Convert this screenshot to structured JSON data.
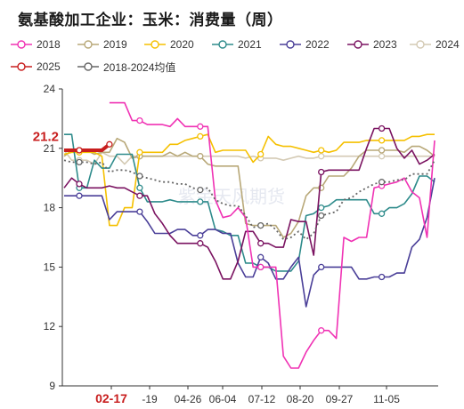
{
  "title": "氨基酸加工企业：玉米：消费量（周）",
  "chart_data": {
    "type": "line",
    "title": "氨基酸加工企业：玉米：消费量（周）",
    "ylim": [
      9,
      24
    ],
    "yticks": [
      "24",
      "21",
      "18",
      "15",
      "12",
      "9"
    ],
    "x_ticks": [
      "02-17",
      "-19",
      "04-26",
      "06-04",
      "07-12",
      "08-20",
      "09-27",
      "11-05"
    ],
    "highlight_x": "02-17",
    "highlight_value": "21.2",
    "grid": false,
    "legend_position": "top",
    "n_points": 50,
    "series": [
      {
        "name": "2018",
        "color": "#f032b4",
        "marker": "circle",
        "values": [
          null,
          null,
          null,
          null,
          null,
          null,
          23.3,
          23.3,
          23.3,
          22.4,
          22.4,
          22.2,
          22.2,
          22.2,
          22.1,
          22.5,
          22.1,
          22.1,
          22.1,
          22.1,
          18.4,
          17.5,
          17.6,
          18.0,
          17.5,
          15.0,
          15.0,
          15.0,
          15.0,
          10.5,
          9.9,
          9.9,
          10.7,
          11.3,
          11.8,
          11.8,
          11.4,
          16.5,
          16.3,
          16.5,
          16.5,
          19.0,
          19.1,
          19.2,
          19.3,
          19.5,
          18.8,
          18.5,
          16.5,
          21.4
        ]
      },
      {
        "name": "2019",
        "color": "#b8a878",
        "marker": "circle",
        "values": [
          20.6,
          20.9,
          20.9,
          20.9,
          20.7,
          20.8,
          20.8,
          21.5,
          21.3,
          20.5,
          20.6,
          20.6,
          20.6,
          20.6,
          20.8,
          20.6,
          20.8,
          20.6,
          20.6,
          20.2,
          20.1,
          20.1,
          20.1,
          20.1,
          17.2,
          17.1,
          17.1,
          17.1,
          17.1,
          16.5,
          16.7,
          17.3,
          18.6,
          19.0,
          19.0,
          19.6,
          19.6,
          19.6,
          20.0,
          20.6,
          20.9,
          20.9,
          20.9,
          20.9,
          20.9,
          20.8,
          21.1,
          21.1,
          20.9,
          20.6
        ]
      },
      {
        "name": "2020",
        "color": "#f5c000",
        "marker": "circle",
        "values": [
          20.7,
          20.8,
          20.8,
          20.8,
          20.8,
          20.6,
          17.1,
          17.1,
          18.0,
          18.0,
          20.8,
          20.8,
          20.8,
          20.8,
          21.2,
          21.2,
          21.4,
          21.5,
          21.6,
          21.7,
          20.8,
          20.9,
          20.9,
          20.9,
          20.9,
          20.3,
          20.7,
          21.6,
          21.2,
          21.1,
          21.1,
          21.0,
          20.9,
          20.8,
          20.9,
          20.8,
          20.9,
          21.3,
          21.3,
          21.3,
          21.4,
          21.4,
          21.4,
          21.4,
          21.4,
          21.4,
          21.6,
          21.6,
          21.7,
          21.7
        ]
      },
      {
        "name": "2021",
        "color": "#2e8b8b",
        "marker": "circle",
        "values": [
          21.7,
          21.7,
          19.0,
          19.0,
          20.4,
          20.0,
          20.0,
          20.7,
          20.7,
          20.7,
          19.0,
          18.3,
          18.3,
          18.3,
          18.4,
          18.3,
          18.3,
          18.3,
          18.3,
          18.3,
          16.9,
          16.8,
          16.6,
          16.6,
          15.2,
          15.2,
          15.0,
          15.0,
          14.8,
          14.8,
          14.8,
          15.3,
          17.6,
          17.7,
          18.0,
          18.1,
          18.4,
          18.4,
          18.4,
          18.4,
          18.4,
          17.7,
          17.7,
          18.0,
          18.0,
          18.2,
          18.7,
          19.6,
          19.6,
          19.3
        ]
      },
      {
        "name": "2022",
        "color": "#4a3f98",
        "marker": "circle",
        "values": [
          18.6,
          18.6,
          18.6,
          18.6,
          18.6,
          18.6,
          17.4,
          17.8,
          17.8,
          17.8,
          17.8,
          17.3,
          16.7,
          16.7,
          16.7,
          16.9,
          16.9,
          16.6,
          16.6,
          16.9,
          16.9,
          16.7,
          16.7,
          15.2,
          14.5,
          14.5,
          15.5,
          15.2,
          14.4,
          14.4,
          15.0,
          15.5,
          13.0,
          14.6,
          15.0,
          15.0,
          15.0,
          15.0,
          15.0,
          14.4,
          14.4,
          14.5,
          14.5,
          14.5,
          14.7,
          14.7,
          16.0,
          16.4,
          17.5,
          19.5
        ]
      },
      {
        "name": "2023",
        "color": "#7a1260",
        "marker": "circle",
        "values": [
          19.0,
          19.5,
          19.2,
          19.0,
          19.0,
          19.0,
          19.1,
          19.0,
          19.0,
          18.8,
          18.6,
          18.6,
          17.7,
          17.2,
          16.6,
          16.2,
          16.2,
          16.2,
          16.2,
          16.0,
          15.3,
          14.4,
          14.4,
          15.3,
          16.8,
          16.8,
          16.2,
          16.2,
          16.0,
          16.0,
          17.4,
          17.3,
          17.3,
          15.6,
          19.8,
          19.9,
          19.9,
          19.9,
          19.9,
          19.9,
          21.0,
          22.0,
          22.0,
          22.0,
          21.0,
          20.5,
          20.9,
          20.2,
          20.4,
          20.7
        ]
      },
      {
        "name": "2024",
        "color": "#d4cab4",
        "marker": "circle",
        "values": [
          20.9,
          20.4,
          20.4,
          20.4,
          20.2,
          20.8,
          20.6,
          20.6,
          20.2,
          20.6,
          20.6,
          20.6,
          20.6,
          20.6,
          20.6,
          20.6,
          20.6,
          20.6,
          20.6,
          20.6,
          20.6,
          20.6,
          20.6,
          20.6,
          20.5,
          20.6,
          20.5,
          20.5,
          20.5,
          20.4,
          20.5,
          20.6,
          20.5,
          20.5,
          20.6,
          20.6,
          20.6,
          20.6,
          20.6,
          20.6,
          20.6,
          20.6,
          20.6,
          20.6,
          20.6,
          20.6,
          20.6,
          20.6,
          20.6,
          20.6
        ]
      },
      {
        "name": "2025",
        "color": "#c81e1e",
        "marker": "circle",
        "values": [
          20.9,
          20.9,
          20.9,
          20.9,
          20.9,
          20.9,
          21.2,
          null,
          null,
          null,
          null,
          null,
          null,
          null,
          null,
          null,
          null,
          null,
          null,
          null,
          null,
          null,
          null,
          null,
          null,
          null,
          null,
          null,
          null,
          null,
          null,
          null,
          null,
          null,
          null,
          null,
          null,
          null,
          null,
          null,
          null,
          null,
          null,
          null,
          null,
          null,
          null,
          null,
          null,
          null
        ]
      },
      {
        "name": "2018-2024均值",
        "color": "#666666",
        "marker": "circle",
        "dash": true,
        "values": [
          20.4,
          20.3,
          20.3,
          20.3,
          20.2,
          20.3,
          19.8,
          19.9,
          19.9,
          19.8,
          19.6,
          19.5,
          19.4,
          19.3,
          19.3,
          19.2,
          19.2,
          19.0,
          18.9,
          19.0,
          18.4,
          18.2,
          18.1,
          18.1,
          17.6,
          17.0,
          17.1,
          17.2,
          16.9,
          16.4,
          16.5,
          16.8,
          16.4,
          16.7,
          17.6,
          17.7,
          17.8,
          18.4,
          18.5,
          18.8,
          19.0,
          19.2,
          19.3,
          19.3,
          19.4,
          19.4,
          19.7,
          19.7,
          19.7,
          20.4
        ]
      }
    ]
  }
}
